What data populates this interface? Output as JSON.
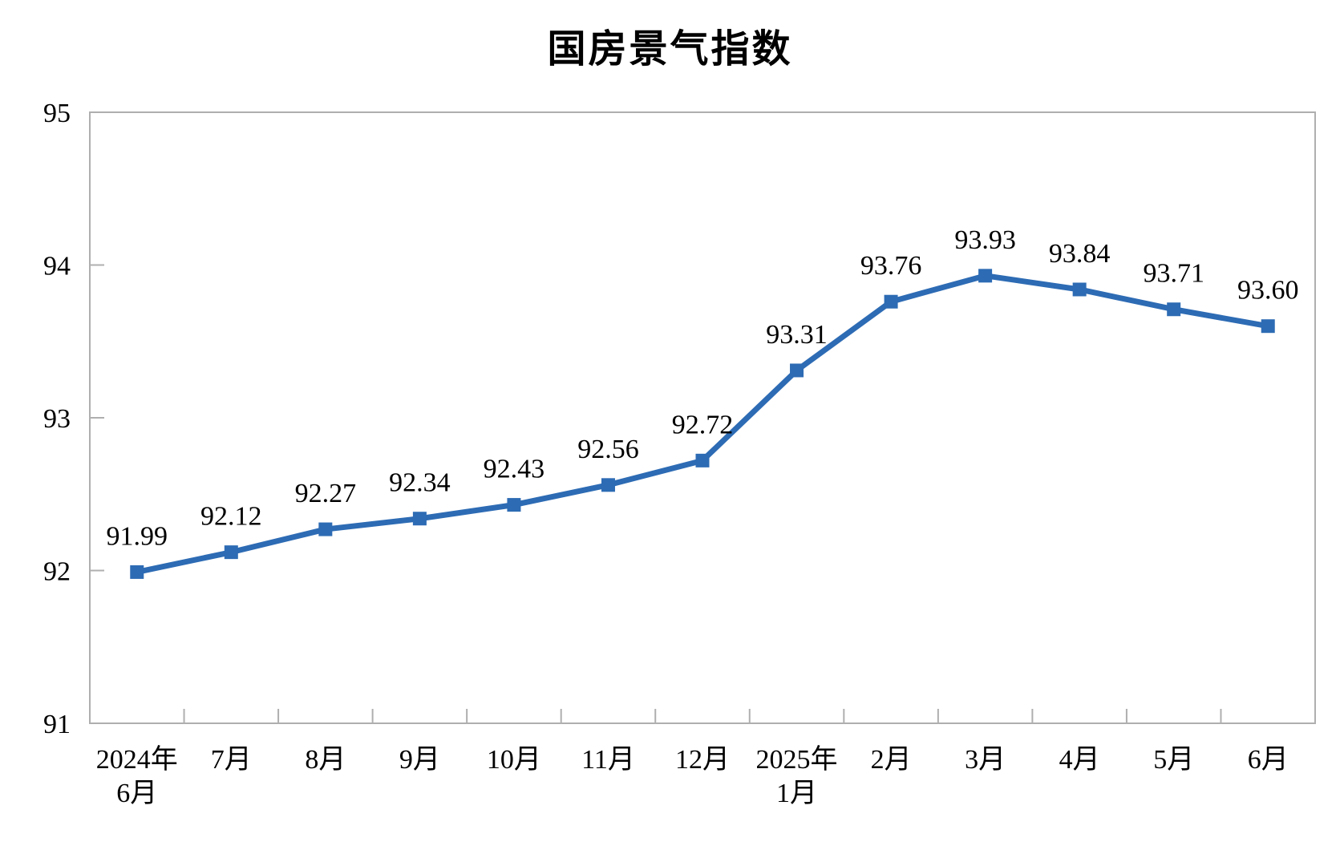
{
  "page": {
    "background_color": "#FFFFFF"
  },
  "chart_data": {
    "type": "line",
    "title": "国房景气指数",
    "categories": [
      "2024年6月",
      "7月",
      "8月",
      "9月",
      "10月",
      "11月",
      "12月",
      "2025年1月",
      "2月",
      "3月",
      "4月",
      "5月",
      "6月"
    ],
    "categories_lines": [
      [
        "2024年",
        "6月"
      ],
      [
        "7月"
      ],
      [
        "8月"
      ],
      [
        "9月"
      ],
      [
        "10月"
      ],
      [
        "11月"
      ],
      [
        "12月"
      ],
      [
        "2025年",
        "1月"
      ],
      [
        "2月"
      ],
      [
        "3月"
      ],
      [
        "4月"
      ],
      [
        "5月"
      ],
      [
        "6月"
      ]
    ],
    "values": [
      91.99,
      92.12,
      92.27,
      92.34,
      92.43,
      92.56,
      92.72,
      93.31,
      93.76,
      93.93,
      93.84,
      93.71,
      93.6
    ],
    "data_labels": [
      "91.99",
      "92.12",
      "92.27",
      "92.34",
      "92.43",
      "92.56",
      "92.72",
      "93.31",
      "93.76",
      "93.93",
      "93.84",
      "93.71",
      "93.60"
    ],
    "xlabel": "",
    "ylabel": "",
    "ylim": [
      91,
      95
    ],
    "yticks": [
      91,
      92,
      93,
      94,
      95
    ],
    "ytick_labels": [
      "91",
      "92",
      "93",
      "94",
      "95"
    ],
    "grid": false,
    "legend_position": "none",
    "colors": {
      "series_line": "#2D6BB4",
      "marker_fill": "#2D6BB4",
      "axis_line": "#AFAFAF",
      "text": "#000000",
      "background": "#FFFFFF"
    },
    "marker_style": "square"
  }
}
